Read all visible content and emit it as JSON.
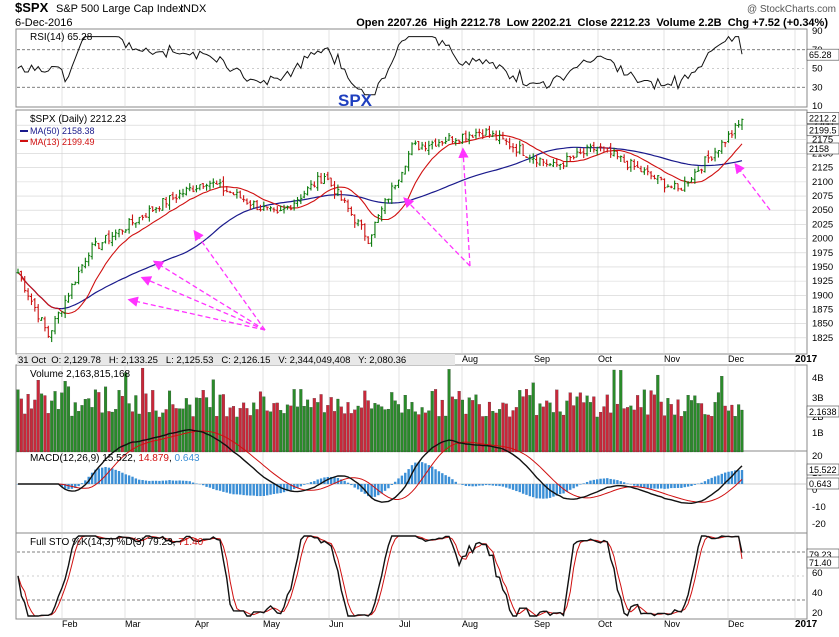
{
  "header": {
    "symbol": "$SPX",
    "name": "S&P 500 Large Cap Index",
    "exchange": "INDX",
    "date": "6-Dec-2016",
    "watermark": "@ StockCharts.com",
    "quote": "Open 2207.26  High 2212.78  Low 2202.21  Close 2212.23  Volume 2.2B  Chg +7.52 (+0.34%)"
  },
  "colors": {
    "price_up": "#0a7a0a",
    "price_down": "#cc1111",
    "ma50": "#1a1a8c",
    "ma13": "#d01010",
    "annotation": "#ff33ff",
    "macd_hist": "#3b8fd6",
    "grid": "#d0d0d0"
  },
  "chart_data": [
    {
      "type": "line",
      "panel": "rsi",
      "label": "RSI(14) 65.28",
      "last_value": 65.28,
      "ylim": [
        10,
        90
      ],
      "y_ticks": [
        "90",
        "70",
        "50",
        "30",
        "10"
      ],
      "reference_lines": [
        70,
        30
      ],
      "right_badge": "65.28"
    },
    {
      "type": "candlestick",
      "panel": "price",
      "label": "$SPX (Daily) 2212.23",
      "overlay_title": "SPX",
      "ylim": [
        1800,
        2225
      ],
      "y_ticks": [
        "1825",
        "1850",
        "1875",
        "1900",
        "1925",
        "1950",
        "1975",
        "2000",
        "2025",
        "2050",
        "2075",
        "2100",
        "2125",
        "2150",
        "2175",
        "2200"
      ],
      "right_badges": [
        "2212.2",
        "2199.5",
        "2158"
      ],
      "x_months": [
        "Feb",
        "Mar",
        "Apr",
        "May",
        "Jun",
        "Jul",
        "Aug",
        "Sep",
        "Oct",
        "Nov",
        "Dec",
        "2017"
      ],
      "dates": [
        "2016-01-29",
        "2016-02-11",
        "2016-03-01",
        "2016-03-31",
        "2016-04-20",
        "2016-05-19",
        "2016-06-08",
        "2016-06-27",
        "2016-07-15",
        "2016-08-15",
        "2016-09-13",
        "2016-10-03",
        "2016-11-04",
        "2016-11-30",
        "2016-12-06"
      ],
      "close": [
        1940,
        1829,
        1978,
        2060,
        2102,
        2040,
        2112,
        2000,
        2161,
        2190,
        2127,
        2161,
        2085,
        2199,
        2212
      ],
      "series": [
        {
          "name": "MA(50) 2158.38",
          "last": 2158.38
        },
        {
          "name": "MA(13) 2199.49",
          "last": 2199.49
        }
      ],
      "hover_readout": "31 Oct  O: 2,129.78   H: 2,133.25   L: 2,125.53   C: 2,126.15   V: 2,344,049,408   Y: 2,080.36"
    },
    {
      "type": "bar",
      "panel": "volume",
      "label": "Volume 2,163,815,168",
      "y_ticks": [
        "4B",
        "3B",
        "2B",
        "1B"
      ],
      "right_badge": "2.1638",
      "last_value": 2163815168
    },
    {
      "type": "line",
      "panel": "macd",
      "label_prefix": "MACD(12,26,9) 15.522, ",
      "label_signal": "14.879",
      "label_sep": ", ",
      "label_hist": "0.643",
      "macd": 15.522,
      "signal": 14.879,
      "histogram": 0.643,
      "y_ticks": [
        "20",
        "10",
        "0",
        "-10",
        "-20"
      ],
      "right_badges": [
        "15.522",
        "0.643"
      ]
    },
    {
      "type": "line",
      "panel": "stochastic",
      "label_prefix": "Full STO %K(14,3) %D(3) 79.23, ",
      "label_d": "71.40",
      "k": 79.23,
      "d": 71.4,
      "y_ticks": [
        "80",
        "60",
        "40",
        "20"
      ],
      "right_badges": [
        "79.23",
        "71.40"
      ]
    }
  ]
}
